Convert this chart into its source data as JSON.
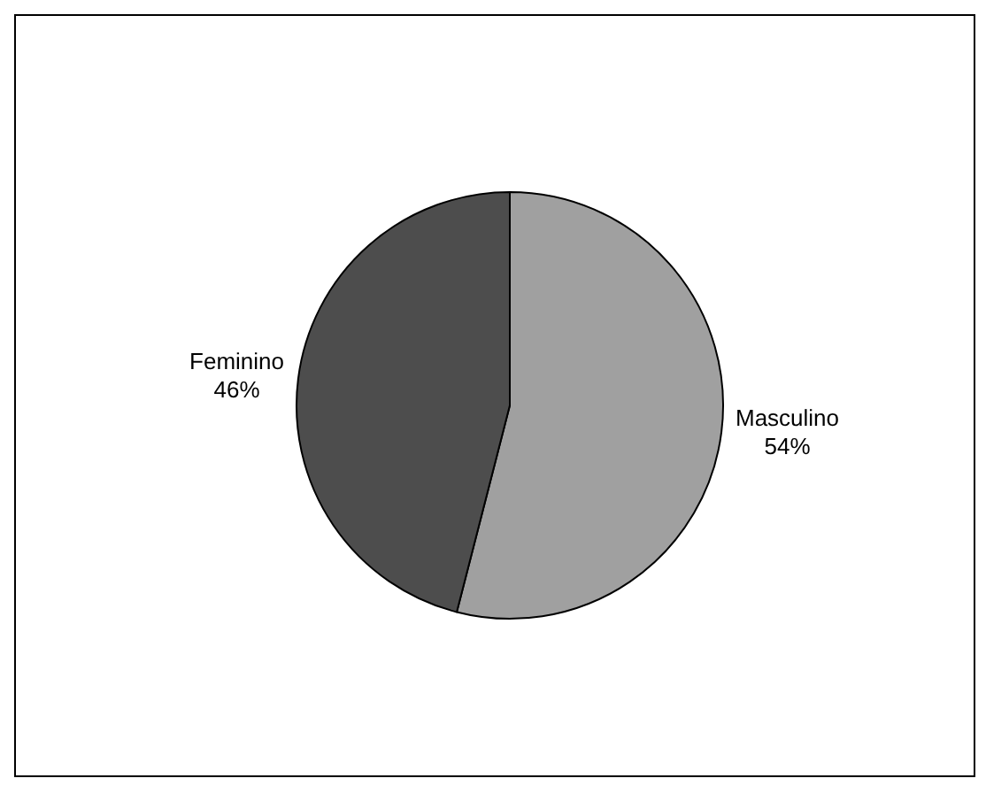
{
  "chart_data": {
    "type": "pie",
    "categories": [
      "Masculino",
      "Feminino"
    ],
    "values": [
      54,
      46
    ],
    "colors": [
      "#a0a0a0",
      "#4d4d4d"
    ],
    "value_labels": [
      "54%",
      "46%"
    ],
    "legend": false
  }
}
